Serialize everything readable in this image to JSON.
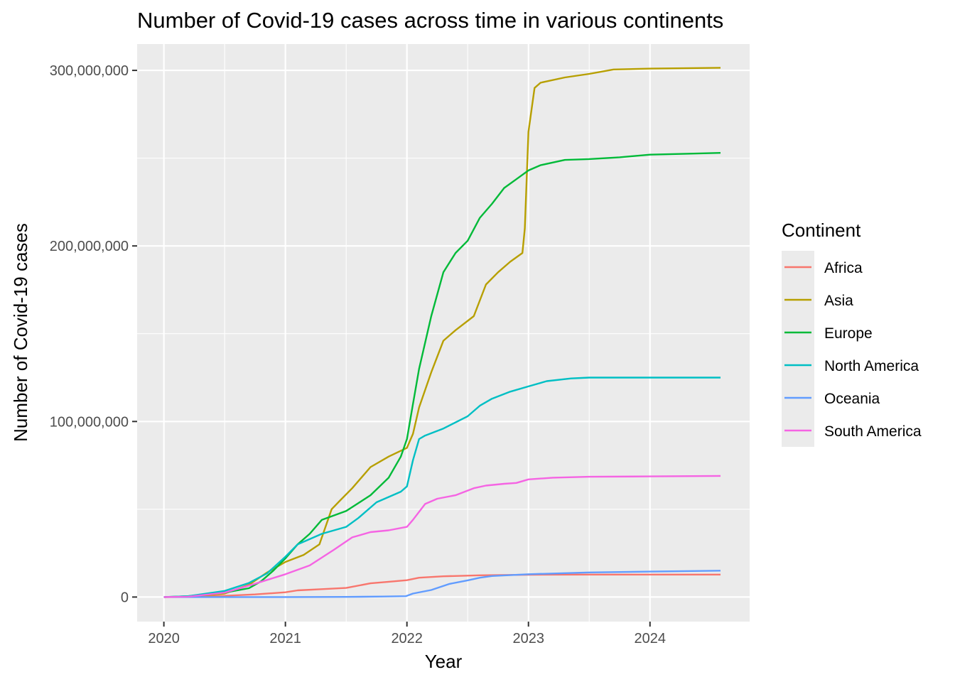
{
  "chart_data": {
    "type": "line",
    "title": "Number of Covid-19 cases across time in various continents",
    "xlabel": "Year",
    "ylabel": "Number of Covid-19 cases",
    "xlim": [
      2019.78,
      2024.82
    ],
    "ylim": [
      -14000000,
      315000000
    ],
    "x_ticks": [
      2020,
      2021,
      2022,
      2023,
      2024
    ],
    "x_tick_labels": [
      "2020",
      "2021",
      "2022",
      "2023",
      "2024"
    ],
    "y_ticks": [
      0,
      100000000,
      200000000,
      300000000
    ],
    "y_tick_labels": [
      "0",
      "100,000,000",
      "200,000,000",
      "300,000,000"
    ],
    "grid": true,
    "legend": {
      "title": "Continent",
      "position": "right"
    },
    "series": [
      {
        "name": "Africa",
        "color": "#F8766D",
        "x": [
          2020.0,
          2020.2,
          2020.5,
          2020.75,
          2021.0,
          2021.1,
          2021.3,
          2021.5,
          2021.7,
          2021.85,
          2022.0,
          2022.1,
          2022.3,
          2022.6,
          2023.0,
          2023.5,
          2024.0,
          2024.58
        ],
        "y": [
          0,
          100000,
          700000,
          1500000,
          2700000,
          3800000,
          4500000,
          5200000,
          7800000,
          8700000,
          9600000,
          11000000,
          11800000,
          12400000,
          12700000,
          12800000,
          12800000,
          12800000
        ]
      },
      {
        "name": "Asia",
        "color": "#B79F00",
        "x": [
          2020.0,
          2020.2,
          2020.5,
          2020.7,
          2020.85,
          2021.0,
          2021.15,
          2021.28,
          2021.33,
          2021.38,
          2021.45,
          2021.55,
          2021.7,
          2021.85,
          2022.0,
          2022.05,
          2022.1,
          2022.2,
          2022.3,
          2022.4,
          2022.55,
          2022.65,
          2022.75,
          2022.85,
          2022.95,
          2022.97,
          2023.0,
          2023.05,
          2023.1,
          2023.3,
          2023.5,
          2023.7,
          2024.0,
          2024.58
        ],
        "y": [
          0,
          200000,
          2000000,
          7000000,
          14000000,
          20000000,
          24000000,
          30000000,
          40000000,
          50000000,
          55000000,
          62000000,
          74000000,
          80000000,
          85000000,
          93000000,
          108000000,
          128000000,
          146000000,
          152000000,
          160000000,
          178000000,
          185000000,
          191000000,
          196000000,
          210000000,
          265000000,
          290000000,
          293000000,
          296000000,
          298000000,
          300500000,
          301000000,
          301500000
        ]
      },
      {
        "name": "Europe",
        "color": "#00BA38",
        "x": [
          2020.0,
          2020.2,
          2020.5,
          2020.7,
          2020.8,
          2020.9,
          2021.0,
          2021.1,
          2021.2,
          2021.3,
          2021.5,
          2021.7,
          2021.85,
          2021.95,
          2022.0,
          2022.05,
          2022.1,
          2022.2,
          2022.3,
          2022.4,
          2022.5,
          2022.6,
          2022.7,
          2022.8,
          2022.9,
          2023.0,
          2023.1,
          2023.3,
          2023.5,
          2023.75,
          2024.0,
          2024.3,
          2024.58
        ],
        "y": [
          0,
          500000,
          2500000,
          5000000,
          9000000,
          15000000,
          22000000,
          30000000,
          36000000,
          44000000,
          49000000,
          58000000,
          68000000,
          80000000,
          90000000,
          110000000,
          130000000,
          160000000,
          185000000,
          196000000,
          203000000,
          216000000,
          224000000,
          233000000,
          238000000,
          243000000,
          246000000,
          249000000,
          249500000,
          250500000,
          252000000,
          252500000,
          253000000
        ]
      },
      {
        "name": "North America",
        "color": "#00BFC4",
        "x": [
          2020.0,
          2020.2,
          2020.5,
          2020.7,
          2020.85,
          2021.0,
          2021.1,
          2021.3,
          2021.5,
          2021.6,
          2021.75,
          2021.95,
          2022.0,
          2022.05,
          2022.1,
          2022.15,
          2022.3,
          2022.5,
          2022.6,
          2022.7,
          2022.85,
          2023.0,
          2023.15,
          2023.35,
          2023.5,
          2024.0,
          2024.58
        ],
        "y": [
          0,
          500000,
          3500000,
          8000000,
          13500000,
          23000000,
          30000000,
          36000000,
          40000000,
          45000000,
          54000000,
          60000000,
          63000000,
          78000000,
          90000000,
          92000000,
          96000000,
          103000000,
          109000000,
          113000000,
          117000000,
          120000000,
          123000000,
          124500000,
          125000000,
          125000000,
          125000000
        ]
      },
      {
        "name": "Oceania",
        "color": "#619CFF",
        "x": [
          2020.0,
          2020.5,
          2021.0,
          2021.5,
          2021.8,
          2021.99,
          2022.05,
          2022.2,
          2022.35,
          2022.5,
          2022.6,
          2022.7,
          2023.0,
          2023.5,
          2024.0,
          2024.58
        ],
        "y": [
          0,
          0,
          0,
          100000,
          300000,
          500000,
          2000000,
          4000000,
          7500000,
          9500000,
          11000000,
          12000000,
          13000000,
          14000000,
          14500000,
          15000000
        ]
      },
      {
        "name": "South America",
        "color": "#F564E3",
        "x": [
          2020.0,
          2020.2,
          2020.5,
          2020.7,
          2021.0,
          2021.2,
          2021.4,
          2021.55,
          2021.7,
          2021.85,
          2022.0,
          2022.05,
          2022.15,
          2022.25,
          2022.4,
          2022.55,
          2022.65,
          2022.8,
          2022.9,
          2023.0,
          2023.2,
          2023.5,
          2024.0,
          2024.58
        ],
        "y": [
          0,
          200000,
          2500000,
          6500000,
          13000000,
          18000000,
          27000000,
          34000000,
          37000000,
          38000000,
          40000000,
          44000000,
          53000000,
          56000000,
          58000000,
          62000000,
          63500000,
          64500000,
          65000000,
          67000000,
          68000000,
          68500000,
          68700000,
          69000000
        ]
      }
    ]
  }
}
